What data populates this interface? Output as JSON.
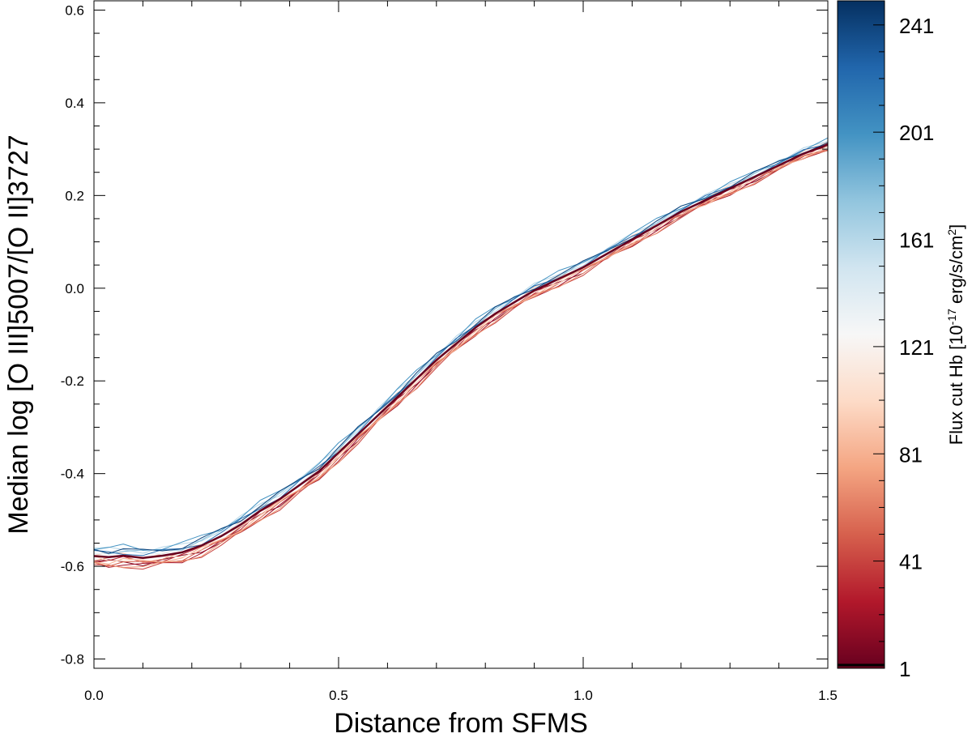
{
  "chart_data": {
    "type": "line",
    "xlabel": "Distance from SFMS",
    "ylabel": "Median log [O III]5007/[O II]3727",
    "xlim": [
      0.0,
      1.5
    ],
    "ylim": [
      -0.82,
      0.62
    ],
    "x_ticks": [
      0.0,
      0.5,
      1.0,
      1.5
    ],
    "x_tick_labels": [
      "0.0",
      "0.5",
      "1.0",
      "1.5"
    ],
    "y_ticks": [
      -0.8,
      -0.6,
      -0.4,
      -0.2,
      0.0,
      0.2,
      0.4,
      0.6
    ],
    "y_tick_labels": [
      "-0.8",
      "-0.6",
      "-0.4",
      "-0.2",
      "0.0",
      "0.2",
      "0.4",
      "0.6"
    ],
    "grid": false,
    "colorbar": {
      "label_main": "Flux cut Hb [10",
      "label_sup1": "-17",
      "label_mid": " erg/s/cm",
      "label_sup2": "2",
      "label_end": "]",
      "range": [
        1,
        250
      ],
      "ticks": [
        1,
        41,
        81,
        121,
        161,
        201,
        241
      ],
      "tick_labels": [
        "1",
        "41",
        "81",
        "121",
        "161",
        "201",
        "241"
      ],
      "colormap": "red-white-blue",
      "marker_value": 1,
      "stops": [
        "#67001f",
        "#b2182b",
        "#d6604d",
        "#f4a582",
        "#fddbc7",
        "#f7f7f7",
        "#d1e5f0",
        "#92c5de",
        "#4393c3",
        "#2166ac",
        "#053061"
      ]
    },
    "base_curve": {
      "x": [
        0.0,
        0.03,
        0.06,
        0.1,
        0.14,
        0.18,
        0.22,
        0.26,
        0.3,
        0.34,
        0.38,
        0.42,
        0.46,
        0.5,
        0.54,
        0.58,
        0.62,
        0.66,
        0.7,
        0.74,
        0.78,
        0.82,
        0.86,
        0.9,
        0.95,
        1.0,
        1.05,
        1.1,
        1.15,
        1.2,
        1.25,
        1.3,
        1.35,
        1.4,
        1.45,
        1.5
      ],
      "y": [
        -0.578,
        -0.58,
        -0.577,
        -0.582,
        -0.577,
        -0.57,
        -0.555,
        -0.535,
        -0.51,
        -0.48,
        -0.455,
        -0.425,
        -0.395,
        -0.355,
        -0.315,
        -0.275,
        -0.235,
        -0.195,
        -0.155,
        -0.12,
        -0.085,
        -0.055,
        -0.03,
        -0.005,
        0.02,
        0.045,
        0.075,
        0.105,
        0.135,
        0.165,
        0.19,
        0.215,
        0.24,
        0.265,
        0.29,
        0.31
      ]
    },
    "series": [
      {
        "flux_cut": 1,
        "values_offset": 0,
        "highlight": true
      },
      {
        "flux_cut": 11,
        "values_offset": -0.012,
        "highlight": false
      },
      {
        "flux_cut": 21,
        "values_offset": -0.018,
        "highlight": false
      },
      {
        "flux_cut": 31,
        "values_offset": -0.008,
        "highlight": false
      },
      {
        "flux_cut": 41,
        "values_offset": -0.022,
        "highlight": false
      },
      {
        "flux_cut": 51,
        "values_offset": -0.014,
        "highlight": false
      },
      {
        "flux_cut": 61,
        "values_offset": -0.005,
        "highlight": false
      },
      {
        "flux_cut": 71,
        "values_offset": -0.02,
        "highlight": false
      },
      {
        "flux_cut": 81,
        "values_offset": -0.01,
        "highlight": false
      },
      {
        "flux_cut": 91,
        "values_offset": 0.004,
        "highlight": false
      },
      {
        "flux_cut": 101,
        "values_offset": -0.006,
        "highlight": false
      },
      {
        "flux_cut": 141,
        "values_offset": 0.01,
        "highlight": false
      },
      {
        "flux_cut": 161,
        "values_offset": 0.016,
        "highlight": false
      },
      {
        "flux_cut": 181,
        "values_offset": 0.012,
        "highlight": false
      },
      {
        "flux_cut": 201,
        "values_offset": 0.02,
        "highlight": false
      },
      {
        "flux_cut": 221,
        "values_offset": 0.008,
        "highlight": false
      },
      {
        "flux_cut": 241,
        "values_offset": 0.014,
        "highlight": false
      }
    ]
  }
}
